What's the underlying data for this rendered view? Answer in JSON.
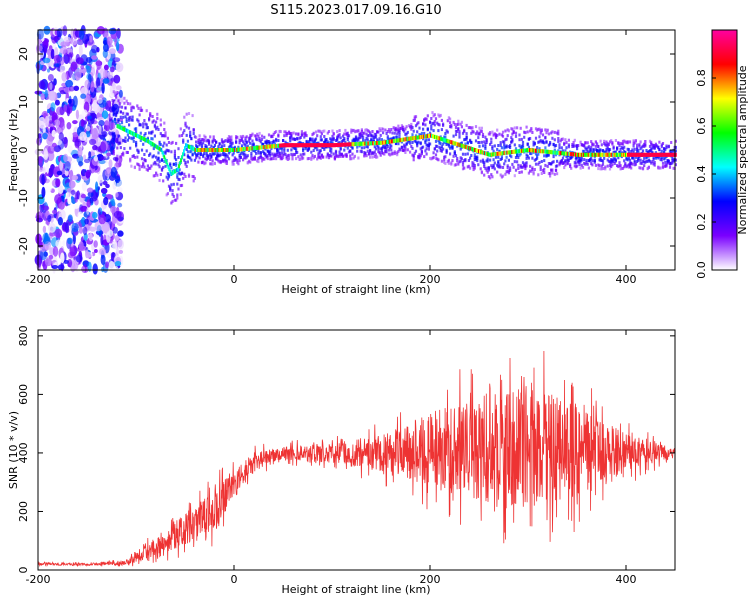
{
  "title": "S115.2023.017.09.16.G10",
  "chart_data": [
    {
      "type": "heatmap",
      "xlabel": "Height of straight line (km)",
      "ylabel": "Frequency (Hz)",
      "xlim": [
        -200,
        450
      ],
      "ylim": [
        -25,
        25
      ],
      "xticks": [
        "-200",
        "0",
        "200",
        "400"
      ],
      "yticks": [
        "20",
        "10",
        "0",
        "-10",
        "-20"
      ],
      "colorbar": {
        "label": "Normalized spectral amplitude",
        "range": [
          0.0,
          1.0
        ],
        "ticks": [
          "0.0",
          "0.2",
          "0.4",
          "0.6",
          "0.8"
        ],
        "colors": [
          "#ffffff",
          "#7a00ff",
          "#0000ff",
          "#00ffff",
          "#00ff00",
          "#ffff00",
          "#ff0000",
          "#ff00a0"
        ]
      },
      "ridge": {
        "x": [
          -130,
          -110,
          -90,
          -75,
          -65,
          -58,
          -50,
          -40,
          0,
          50,
          100,
          150,
          200,
          230,
          260,
          300,
          350,
          400,
          450
        ],
        "y": [
          6,
          4,
          2,
          0,
          -5,
          -4,
          1,
          0,
          0,
          1,
          1,
          1.5,
          3,
          1,
          -1,
          0,
          -1,
          -1,
          -1
        ]
      },
      "noise_region_x": [
        -200,
        -115
      ]
    },
    {
      "type": "line",
      "color": "#ee3333",
      "xlabel": "Height of straight line (km)",
      "ylabel": "SNR (10 * v/v)",
      "xlim": [
        -200,
        450
      ],
      "ylim": [
        0,
        820
      ],
      "xticks": [
        "-200",
        "0",
        "200",
        "400"
      ],
      "yticks": [
        "800",
        "600",
        "400",
        "200",
        "0"
      ],
      "series": [
        {
          "x": [
            -200,
            -150,
            -110,
            -100,
            -80,
            -60,
            -40,
            -20,
            0,
            20,
            50,
            100,
            150,
            200,
            250,
            300,
            350,
            400,
            450
          ],
          "y": [
            20,
            20,
            25,
            50,
            80,
            120,
            150,
            200,
            290,
            370,
            400,
            400,
            400,
            410,
            415,
            420,
            410,
            400,
            400
          ],
          "spread": [
            5,
            5,
            10,
            30,
            40,
            60,
            80,
            100,
            60,
            40,
            30,
            40,
            80,
            160,
            230,
            260,
            200,
            80,
            20
          ]
        }
      ]
    }
  ]
}
